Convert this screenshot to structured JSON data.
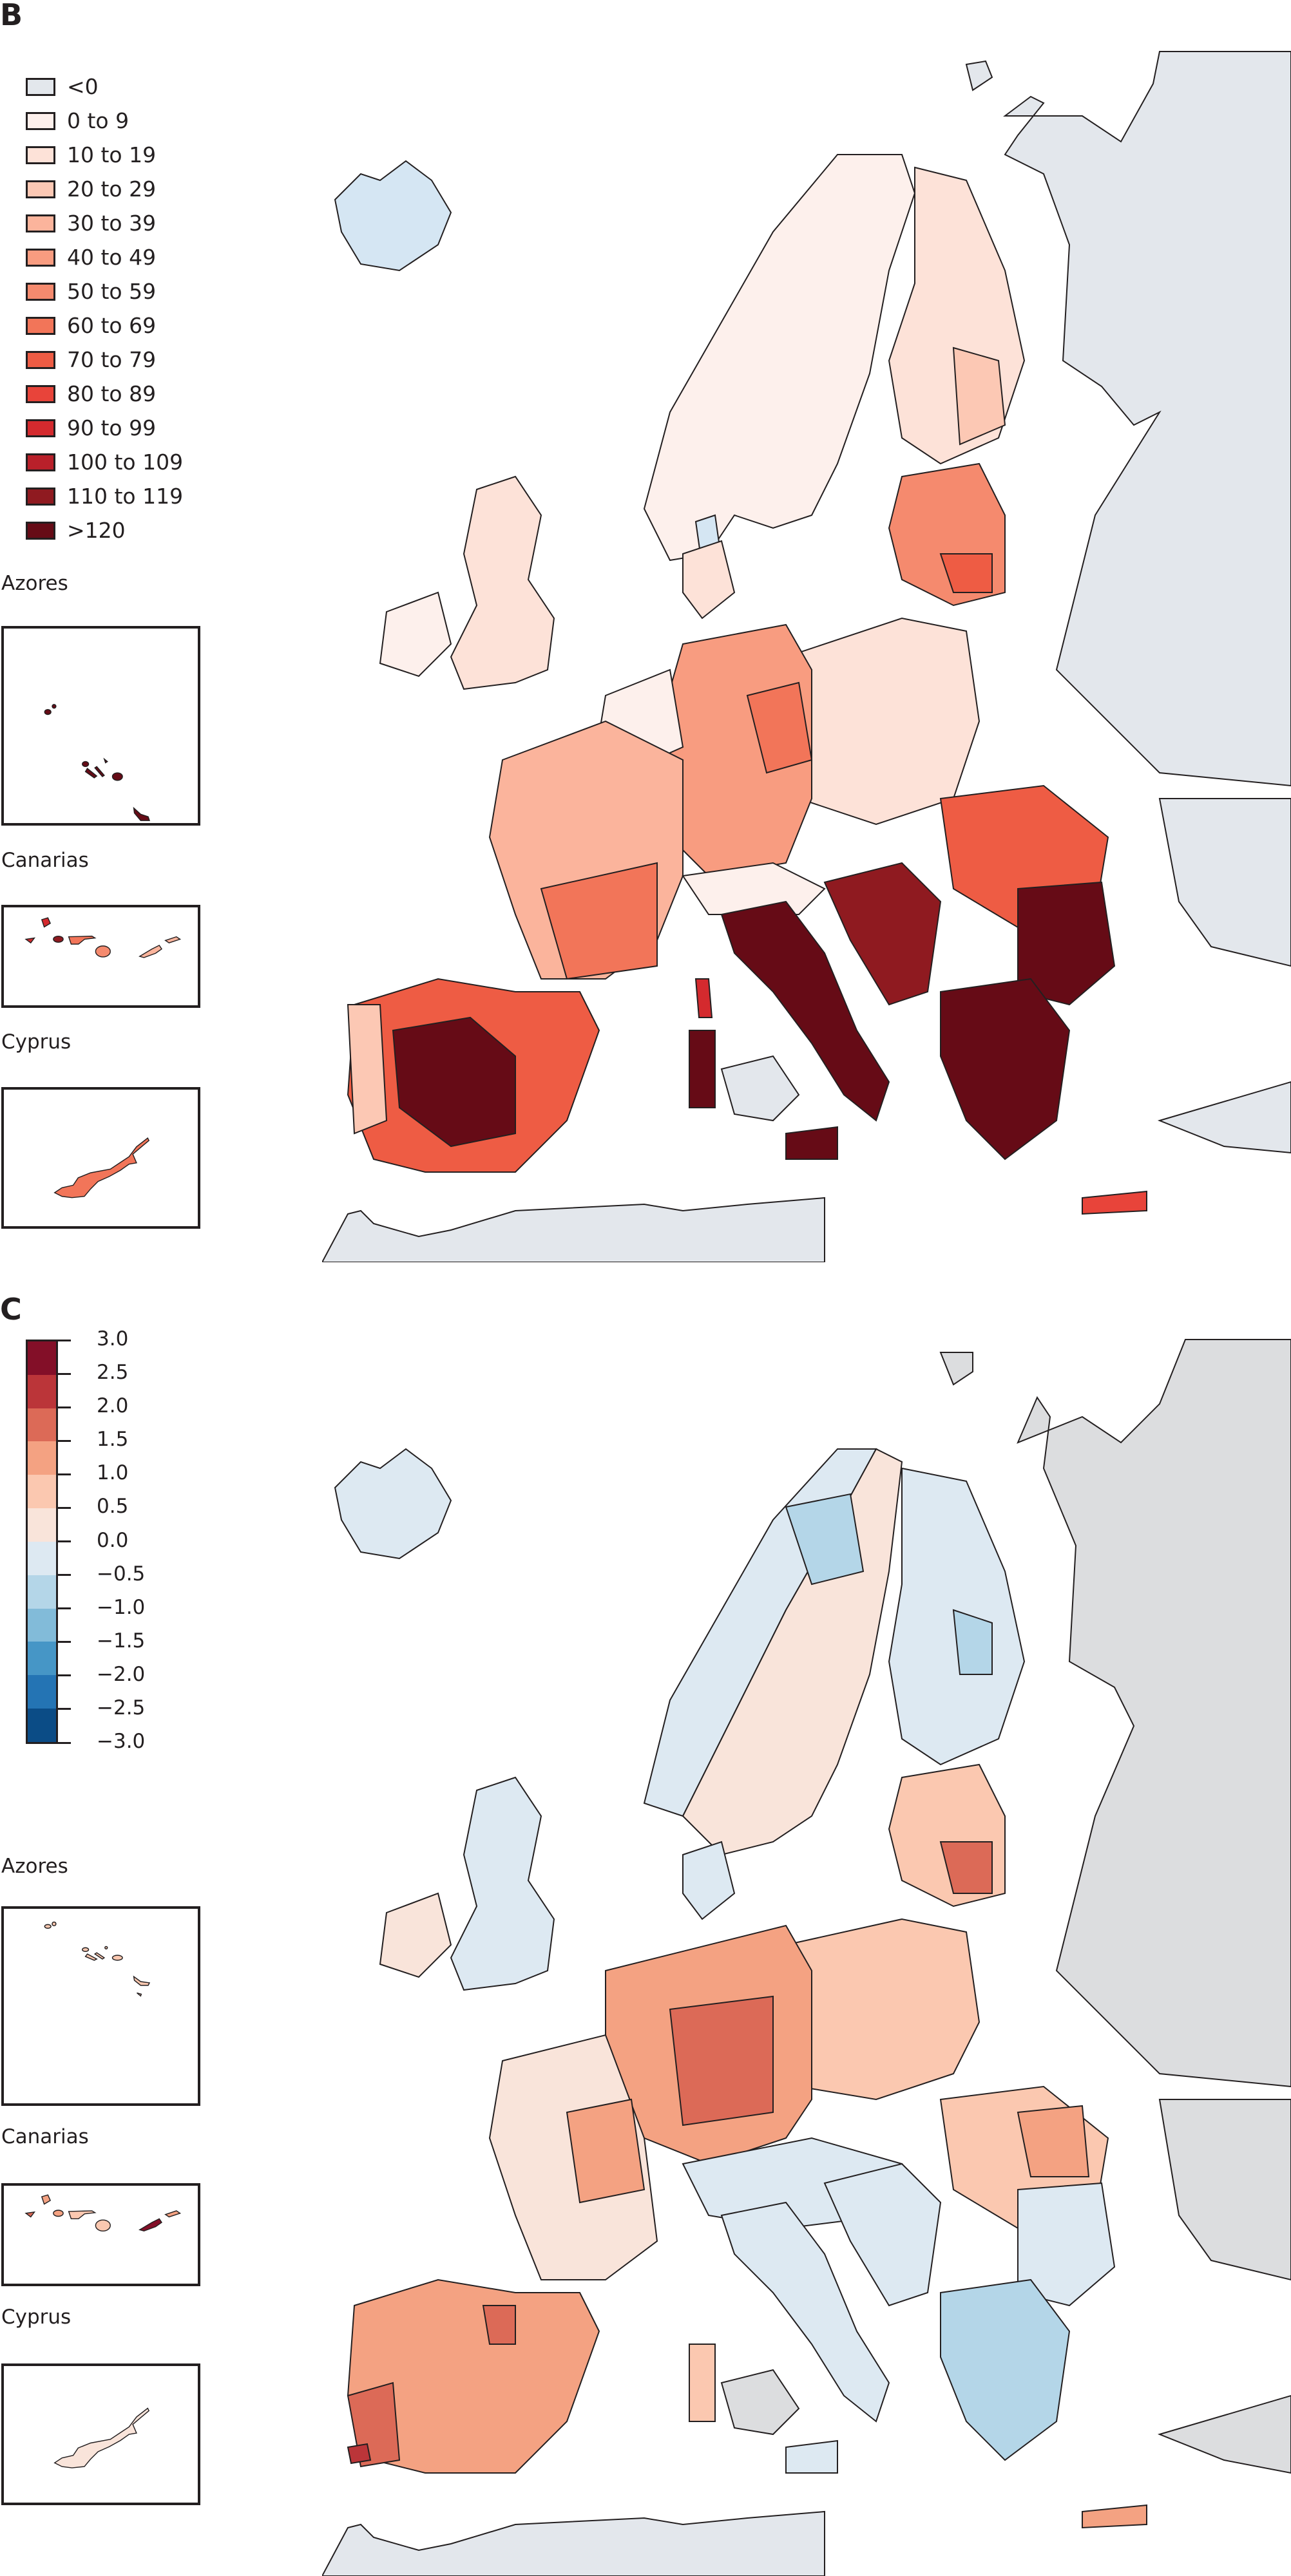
{
  "panel_b": {
    "letter": "B",
    "legend_items": [
      {
        "label": "<0",
        "color": "#e3e7ec"
      },
      {
        "label": "0 to 9",
        "color": "#fdf0ec"
      },
      {
        "label": "10 to 19",
        "color": "#fde2d8"
      },
      {
        "label": "20 to 29",
        "color": "#fcc8b4"
      },
      {
        "label": "30 to 39",
        "color": "#fbb49c"
      },
      {
        "label": "40 to 49",
        "color": "#f89c80"
      },
      {
        "label": "50 to 59",
        "color": "#f58a6e"
      },
      {
        "label": "60 to 69",
        "color": "#f27559"
      },
      {
        "label": "70 to 79",
        "color": "#ee5c44"
      },
      {
        "label": "80 to 89",
        "color": "#e8443a"
      },
      {
        "label": "90 to 99",
        "color": "#d42a2e"
      },
      {
        "label": "100 to 109",
        "color": "#b9202a"
      },
      {
        "label": "110 to 119",
        "color": "#8f1a20"
      },
      {
        "label": ">120",
        "color": "#660b16"
      }
    ],
    "insets": [
      {
        "title": "Azores"
      },
      {
        "title": "Canarias"
      },
      {
        "title": "Cyprus"
      }
    ]
  },
  "panel_c": {
    "letter": "C",
    "colorbar": {
      "ticks": [
        "3.0",
        "2.5",
        "2.0",
        "1.5",
        "1.0",
        "0.5",
        "0.0",
        "−0.5",
        "−1.0",
        "−1.5",
        "−2.0",
        "−2.5",
        "−3.0"
      ],
      "colors": [
        "#830f28",
        "#bb3539",
        "#dc6a57",
        "#f4a282",
        "#fbc8b0",
        "#f9e4da",
        "#dde9f2",
        "#b4d6e8",
        "#82bbd9",
        "#4696c6",
        "#2474b4",
        "#0b4c86"
      ]
    },
    "insets": [
      {
        "title": "Azores"
      },
      {
        "title": "Canarias"
      },
      {
        "title": "Cyprus"
      }
    ]
  },
  "colors": {
    "non_eu_land": "#e3e7ec",
    "non_eu_land_c": "#dcdddf",
    "border": "#231f20"
  },
  "chart_data": [
    {
      "type": "choropleth",
      "title": "B",
      "region": "Europe (NUTS regions)",
      "legend_title": "",
      "classes": [
        "<0",
        "0 to 9",
        "10 to 19",
        "20 to 29",
        "30 to 39",
        "40 to 49",
        "50 to 59",
        "60 to 69",
        "70 to 79",
        "80 to 89",
        "90 to 99",
        "100 to 109",
        "110 to 119",
        ">120"
      ],
      "insets": [
        "Azores",
        "Canarias",
        "Cyprus"
      ],
      "regional_pattern": {
        "Iceland": "<0",
        "Norway": "0 to 9",
        "Sweden": "0 to 9",
        "Finland": "10 to 29",
        "Baltics": "40 to 79",
        "UK_Ireland": "0 to 19",
        "Germany": "30 to 69",
        "Poland": "0 to 29",
        "France": "10 to 69",
        "Spain": "60 to >120",
        "Portugal": "10 to 79",
        "Italy": "90 to >120",
        "Greece": ">120",
        "Bulgaria": "110 to >120",
        "Romania": "70 to 99",
        "Azores": ">120",
        "Canarias": "40 to 109",
        "Cyprus": "60 to 69"
      }
    },
    {
      "type": "choropleth",
      "title": "C",
      "region": "Europe (NUTS regions)",
      "colorbar_range": [
        -3.0,
        3.0
      ],
      "colorbar_step": 0.5,
      "colorbar_ticks": [
        3.0,
        2.5,
        2.0,
        1.5,
        1.0,
        0.5,
        0.0,
        -0.5,
        -1.0,
        -1.5,
        -2.0,
        -2.5,
        -3.0
      ],
      "insets": [
        "Azores",
        "Canarias",
        "Cyprus"
      ],
      "regional_pattern": {
        "Iceland": "-0.5 to 0.0",
        "Norway": "-0.5 to 0.0",
        "Sweden": "0.0 to 0.5",
        "Finland": "-1.0 to 0.0",
        "Baltics_Lithuania": "1.0 to 2.5",
        "UK": "-0.5 to 0.5",
        "Ireland": "0.0 to 0.5",
        "Germany_Belgium": "1.0 to 2.0",
        "France_northeast": "1.0 to 2.0",
        "Spain": "0.5 to 1.5",
        "Portugal_south": "1.5 to 2.5",
        "Italy": "-1.0 to 0.5",
        "Greece": "-1.0 to 0.0",
        "Romania": "0.5 to 1.5",
        "Azores": "0.5 to 1.0",
        "Canarias": "0.5 to 3.0",
        "Cyprus": "0.0 to 0.5"
      }
    }
  ]
}
